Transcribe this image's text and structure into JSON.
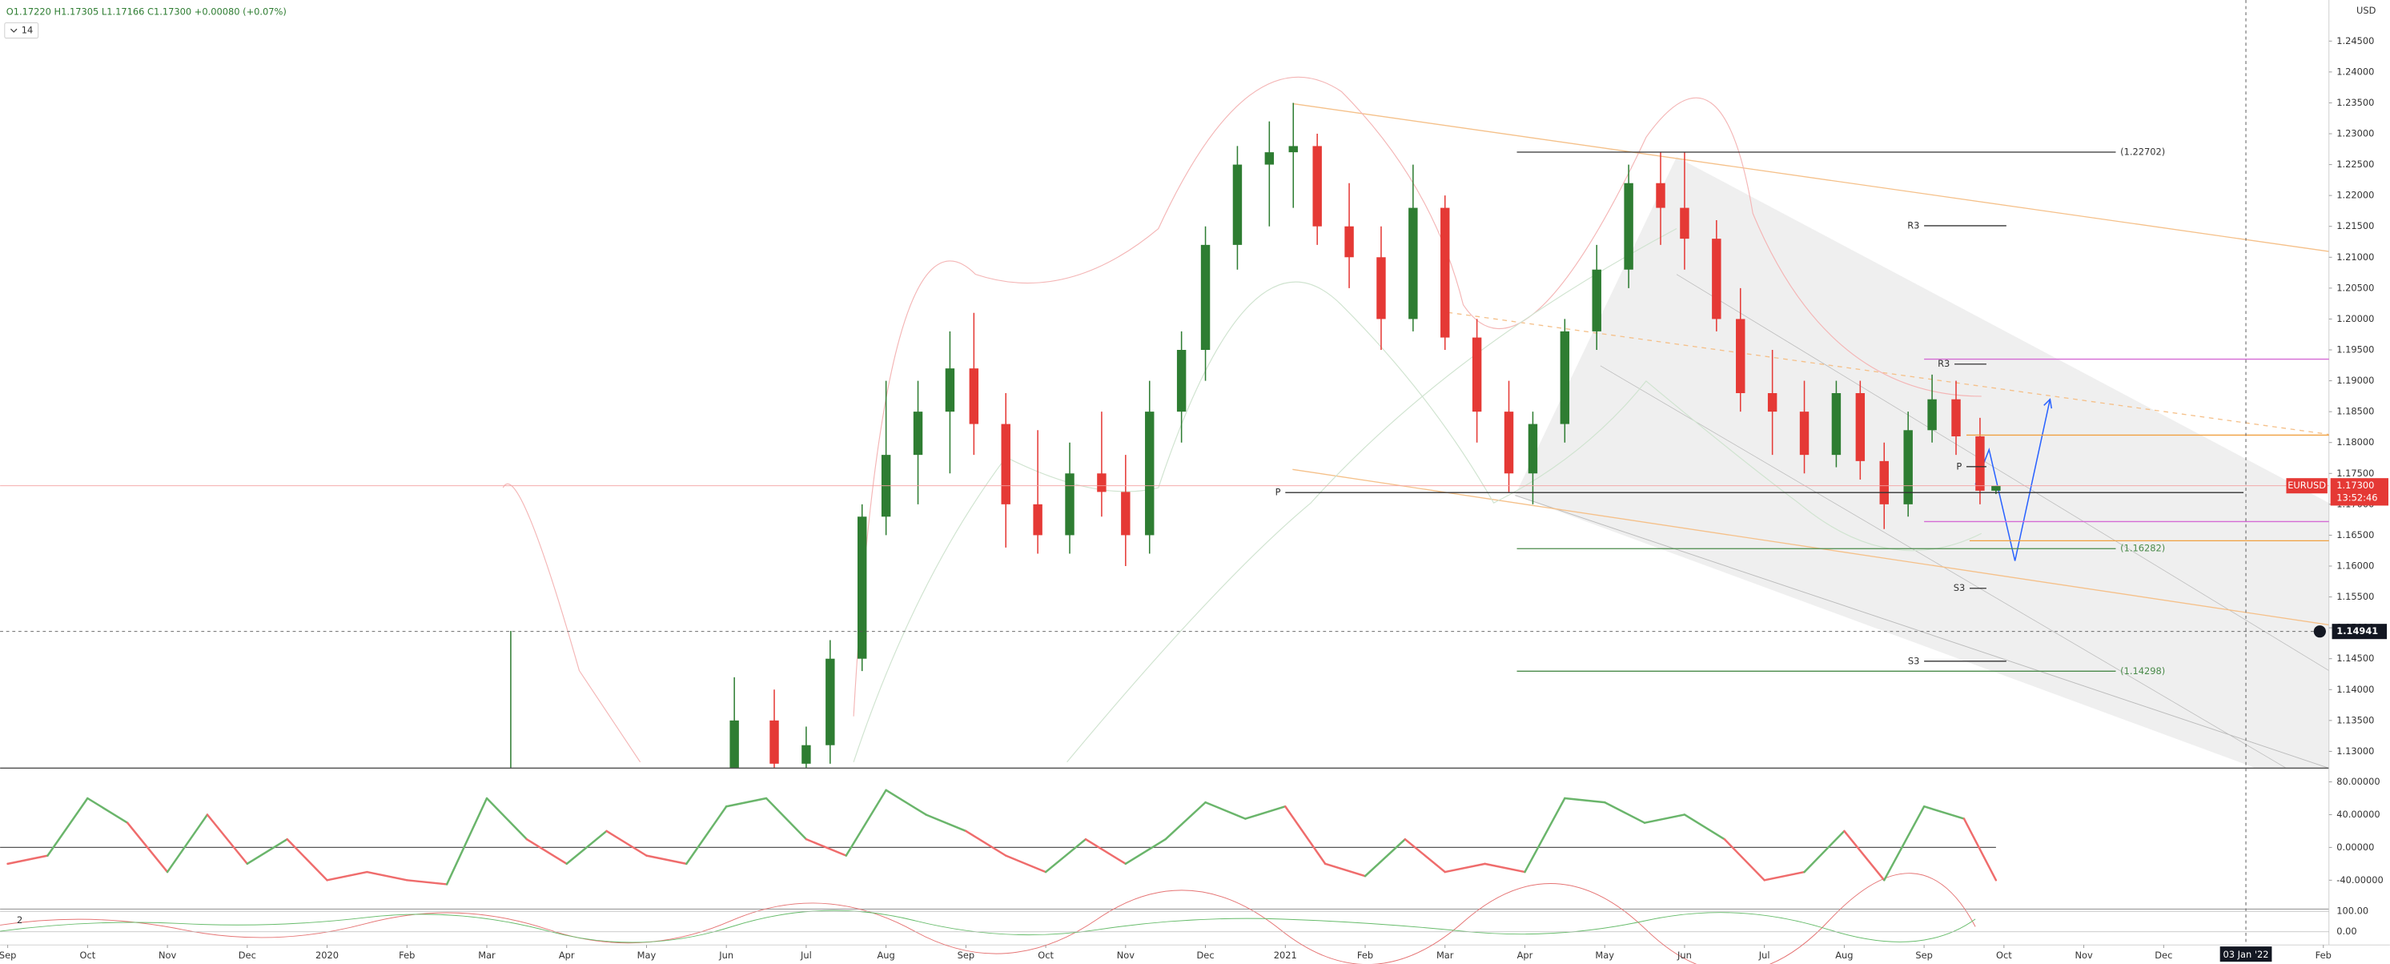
{
  "chart_data": {
    "type": "candlestick",
    "ohlc_text": "O1.17220 H1.17305 L1.17166 C1.17300 +0.00080 (+0.07%)",
    "interval": "14",
    "currency": "USD",
    "symbol": "EURUSD",
    "last": {
      "value": 1.173,
      "label": "1.17300"
    },
    "countdown": "13:52:46",
    "up_color": "#2e7d32",
    "down_color": "#e53935",
    "xlim": [
      -0.0954,
      29.07
    ],
    "ylim": [
      1.12728,
      1.25165
    ],
    "xticks": [
      {
        "value": 0,
        "label": "Sep"
      },
      {
        "value": 1,
        "label": "Oct"
      },
      {
        "value": 2,
        "label": "Nov"
      },
      {
        "value": 3,
        "label": "Dec"
      },
      {
        "value": 4,
        "label": "2020"
      },
      {
        "value": 5,
        "label": "Feb"
      },
      {
        "value": 6,
        "label": "Mar"
      },
      {
        "value": 7,
        "label": "Apr"
      },
      {
        "value": 8,
        "label": "May"
      },
      {
        "value": 9,
        "label": "Jun"
      },
      {
        "value": 10,
        "label": "Jul"
      },
      {
        "value": 11,
        "label": "Aug"
      },
      {
        "value": 12,
        "label": "Sep"
      },
      {
        "value": 13,
        "label": "Oct"
      },
      {
        "value": 14,
        "label": "Nov"
      },
      {
        "value": 15,
        "label": "Dec"
      },
      {
        "value": 16,
        "label": "2021"
      },
      {
        "value": 17,
        "label": "Feb"
      },
      {
        "value": 18,
        "label": "Mar"
      },
      {
        "value": 19,
        "label": "Apr"
      },
      {
        "value": 20,
        "label": "May"
      },
      {
        "value": 21,
        "label": "Jun"
      },
      {
        "value": 22,
        "label": "Jul"
      },
      {
        "value": 23,
        "label": "Aug"
      },
      {
        "value": 24,
        "label": "Sep"
      },
      {
        "value": 25,
        "label": "Oct"
      },
      {
        "value": 26,
        "label": "Nov"
      },
      {
        "value": 27,
        "label": "Dec"
      },
      {
        "value": 29,
        "label": "Feb"
      }
    ],
    "yticks": [
      {
        "value": 1.13,
        "label": "1.13000"
      },
      {
        "value": 1.135,
        "label": "1.13500"
      },
      {
        "value": 1.14,
        "label": "1.14000"
      },
      {
        "value": 1.145,
        "label": "1.14500"
      },
      {
        "value": 1.15,
        "label": "1.15000"
      },
      {
        "value": 1.155,
        "label": "1.15500"
      },
      {
        "value": 1.16,
        "label": "1.16000"
      },
      {
        "value": 1.165,
        "label": "1.16500"
      },
      {
        "value": 1.17,
        "label": "1.17000"
      },
      {
        "value": 1.175,
        "label": "1.17500"
      },
      {
        "value": 1.18,
        "label": "1.18000"
      },
      {
        "value": 1.185,
        "label": "1.18500"
      },
      {
        "value": 1.19,
        "label": "1.19000"
      },
      {
        "value": 1.195,
        "label": "1.19500"
      },
      {
        "value": 1.2,
        "label": "1.20000"
      },
      {
        "value": 1.205,
        "label": "1.20500"
      },
      {
        "value": 1.21,
        "label": "1.21000"
      },
      {
        "value": 1.215,
        "label": "1.21500"
      },
      {
        "value": 1.22,
        "label": "1.22000"
      },
      {
        "value": 1.225,
        "label": "1.22500"
      },
      {
        "value": 1.23,
        "label": "1.23000"
      },
      {
        "value": 1.235,
        "label": "1.23500"
      },
      {
        "value": 1.24,
        "label": "1.24000"
      },
      {
        "value": 1.245,
        "label": "1.24500"
      }
    ],
    "crosshair": {
      "x": {
        "value": 28.03,
        "label": "03 Jan '22"
      },
      "y": 1.14941
    },
    "x": [
      6.3,
      9.1,
      9.6,
      10.0,
      10.3,
      10.7,
      11.0,
      11.4,
      11.8,
      12.1,
      12.5,
      12.9,
      13.3,
      13.7,
      14.0,
      14.3,
      14.7,
      15.0,
      15.4,
      15.8,
      16.1,
      16.4,
      16.8,
      17.2,
      17.6,
      18.0,
      18.4,
      18.8,
      19.1,
      19.5,
      19.9,
      20.3,
      20.7,
      21.0,
      21.4,
      21.7,
      22.1,
      22.5,
      22.9,
      23.2,
      23.5,
      23.8,
      24.1,
      24.4,
      24.7,
      24.9
    ],
    "open": [
      1.105,
      1.125,
      1.135,
      1.128,
      1.131,
      1.145,
      1.168,
      1.178,
      1.185,
      1.192,
      1.183,
      1.17,
      1.165,
      1.175,
      1.172,
      1.165,
      1.185,
      1.195,
      1.212,
      1.225,
      1.227,
      1.228,
      1.215,
      1.21,
      1.2,
      1.218,
      1.197,
      1.185,
      1.175,
      1.183,
      1.198,
      1.208,
      1.222,
      1.218,
      1.213,
      1.2,
      1.188,
      1.185,
      1.178,
      1.188,
      1.177,
      1.17,
      1.182,
      1.187,
      1.181,
      1.1722
    ],
    "high": [
      1.1495,
      1.142,
      1.14,
      1.134,
      1.148,
      1.17,
      1.19,
      1.19,
      1.198,
      1.201,
      1.188,
      1.182,
      1.18,
      1.185,
      1.178,
      1.19,
      1.198,
      1.215,
      1.228,
      1.232,
      1.235,
      1.23,
      1.222,
      1.215,
      1.225,
      1.22,
      1.2,
      1.19,
      1.185,
      1.2,
      1.212,
      1.225,
      1.227,
      1.227,
      1.216,
      1.205,
      1.195,
      1.19,
      1.19,
      1.19,
      1.18,
      1.185,
      1.191,
      1.19,
      1.184,
      1.17305
    ],
    "low": [
      1.1,
      1.12,
      1.122,
      1.12,
      1.128,
      1.143,
      1.165,
      1.17,
      1.175,
      1.178,
      1.163,
      1.162,
      1.162,
      1.168,
      1.16,
      1.162,
      1.18,
      1.19,
      1.208,
      1.215,
      1.218,
      1.212,
      1.205,
      1.195,
      1.198,
      1.195,
      1.18,
      1.172,
      1.17,
      1.18,
      1.195,
      1.205,
      1.212,
      1.208,
      1.198,
      1.185,
      1.178,
      1.175,
      1.176,
      1.174,
      1.166,
      1.168,
      1.18,
      1.178,
      1.17,
      1.17166
    ],
    "close": [
      1.125,
      1.135,
      1.128,
      1.131,
      1.145,
      1.168,
      1.178,
      1.185,
      1.192,
      1.183,
      1.17,
      1.165,
      1.175,
      1.172,
      1.165,
      1.185,
      1.195,
      1.212,
      1.225,
      1.227,
      1.228,
      1.215,
      1.21,
      1.2,
      1.218,
      1.197,
      1.185,
      1.175,
      1.183,
      1.198,
      1.208,
      1.222,
      1.218,
      1.213,
      1.2,
      1.188,
      1.185,
      1.178,
      1.188,
      1.177,
      1.17,
      1.182,
      1.187,
      1.181,
      1.1722,
      1.173
    ],
    "levels": [
      {
        "label": "(1.22702)",
        "value": 1.22702,
        "from": 18.9,
        "to": 26.4,
        "color": "#333333",
        "label_side": "right"
      },
      {
        "label": "(1.16282)",
        "value": 1.16282,
        "from": 18.9,
        "to": 26.4,
        "color": "#4a8a4a",
        "label_side": "right"
      },
      {
        "label": "(1.14298)",
        "value": 1.14298,
        "from": 18.9,
        "to": 26.4,
        "color": "#4a8a4a",
        "label_side": "right"
      },
      {
        "label": "R3",
        "value": 1.2151,
        "from": 24.0,
        "to": 25.03,
        "color": "#333333",
        "label_side": "left"
      },
      {
        "label": "R3",
        "value": 1.1927,
        "from": 24.38,
        "to": 24.78,
        "color": "#333333",
        "label_side": "left"
      },
      {
        "label": "P",
        "value": 1.1719,
        "from": 16.0,
        "to": 28.0,
        "color": "#333333",
        "label_side": "left"
      },
      {
        "label": "P",
        "value": 1.1761,
        "from": 24.53,
        "to": 24.78,
        "color": "#333333",
        "label_side": "left"
      },
      {
        "label": "S3",
        "value": 1.1564,
        "from": 24.57,
        "to": 24.78,
        "color": "#333333",
        "label_side": "left"
      },
      {
        "label": "S3",
        "value": 1.1446,
        "from": 24.0,
        "to": 25.03,
        "color": "#333333",
        "label_side": "left"
      },
      {
        "value": 1.1935,
        "from": 24.0,
        "to": 29.07,
        "color": "#d46ad4"
      },
      {
        "value": 1.1672,
        "from": 24.0,
        "to": 29.07,
        "color": "#d46ad4"
      },
      {
        "value": 1.1812,
        "from": 24.53,
        "to": 29.07,
        "color": "#f0a040"
      },
      {
        "value": 1.1641,
        "from": 24.57,
        "to": 29.07,
        "color": "#f0a040"
      }
    ],
    "oscillator": {
      "ylim": [
        -74.4,
        94.9
      ],
      "yticks": [
        {
          "value": 80,
          "label": "80.00000"
        },
        {
          "value": 40,
          "label": "40.00000"
        },
        {
          "value": 0,
          "label": "0.00000"
        },
        {
          "value": -40,
          "label": "-40.00000"
        }
      ],
      "up_color": "#6ab56b",
      "down_color": "#ef6c6c",
      "x": [
        0,
        0.5,
        1,
        1.5,
        2,
        2.5,
        3,
        3.5,
        4,
        4.5,
        5,
        5.5,
        6,
        6.5,
        7,
        7.5,
        8,
        8.5,
        9,
        9.5,
        10,
        10.5,
        11,
        11.5,
        12,
        12.5,
        13,
        13.5,
        14,
        14.5,
        15,
        15.5,
        16,
        16.5,
        17,
        17.5,
        18,
        18.5,
        19,
        19.5,
        20,
        20.5,
        21,
        21.5,
        22,
        22.5,
        23,
        23.5,
        24,
        24.5,
        24.9
      ],
      "values": [
        -20,
        -10,
        60,
        30,
        -30,
        40,
        -20,
        10,
        -40,
        -30,
        -40,
        -45,
        60,
        10,
        -20,
        20,
        -10,
        -20,
        50,
        60,
        10,
        -10,
        70,
        40,
        20,
        -10,
        -30,
        10,
        -20,
        10,
        55,
        35,
        50,
        -20,
        -35,
        10,
        -30,
        -20,
        -30,
        60,
        55,
        30,
        40,
        10,
        -40,
        -30,
        20,
        -40,
        50,
        35,
        -40
      ]
    },
    "stochastic": {
      "label": "2",
      "ylim": [
        -57,
        107
      ],
      "yticks": [
        {
          "value": 100,
          "label": "100.00"
        },
        {
          "value": 0,
          "label": "0.00"
        }
      ]
    }
  }
}
